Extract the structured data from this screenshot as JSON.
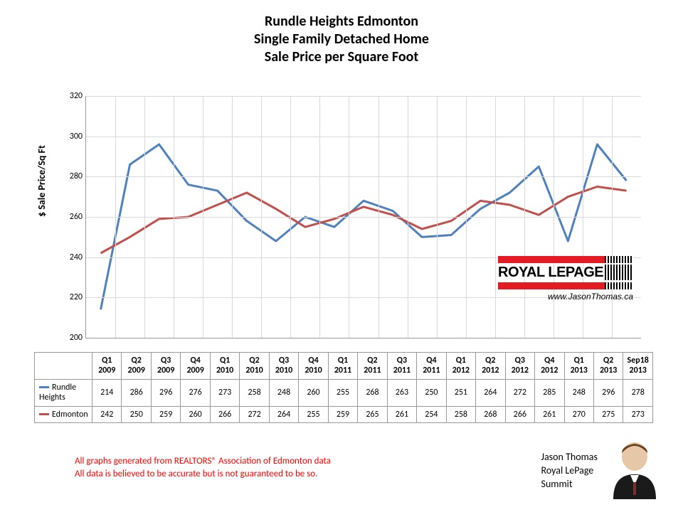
{
  "title": {
    "line1": "Rundle Heights Edmonton",
    "line2": "Single Family Detached Home",
    "line3": "Sale Price per Square Foot",
    "fontsize": 20,
    "fontweight": "bold",
    "color": "#000000"
  },
  "chart": {
    "type": "line",
    "background_color": "#ffffff",
    "grid_color": "#d9d9d9",
    "axis_color": "#999999",
    "ylabel": "$ Sale Price/Sq Ft",
    "ylabel_fontsize": 14,
    "ylim": [
      200,
      320
    ],
    "ytick_step": 20,
    "tick_fontsize": 12,
    "line_width": 3,
    "categories": [
      "Q1 2009",
      "Q2 2009",
      "Q3 2009",
      "Q4 2009",
      "Q1 2010",
      "Q2 2010",
      "Q3 2010",
      "Q4 2010",
      "Q1 2011",
      "Q2 2011",
      "Q3 2011",
      "Q4 2011",
      "Q1 2012",
      "Q2 2012",
      "Q3 2012",
      "Q4 2012",
      "Q1 2013",
      "Q2 2013",
      "Sep18 2013"
    ],
    "series": [
      {
        "name": "Rundle Heights",
        "color": "#4f81bd",
        "values": [
          214,
          286,
          296,
          276,
          273,
          258,
          248,
          260,
          255,
          268,
          263,
          250,
          251,
          264,
          272,
          285,
          248,
          296,
          278
        ]
      },
      {
        "name": "Edmonton",
        "color": "#c0504d",
        "values": [
          242,
          250,
          259,
          260,
          266,
          272,
          264,
          255,
          259,
          265,
          261,
          254,
          258,
          268,
          266,
          261,
          270,
          275,
          273
        ]
      }
    ]
  },
  "logo": {
    "brand": "ROYAL LEPAGE",
    "bar_color": "#e41b23",
    "url": "www.JasonThomas.ca"
  },
  "disclaimer": {
    "line1": "All graphs generated from REALTORS® Association of Edmonton data",
    "line2": "All data is believed to be accurate but is not guaranteed to be so.",
    "color": "#ff0000",
    "fontsize": 13
  },
  "signature": {
    "line1": "Jason Thomas",
    "line2": "Royal LePage",
    "line3": "Summit",
    "fontsize": 14
  }
}
